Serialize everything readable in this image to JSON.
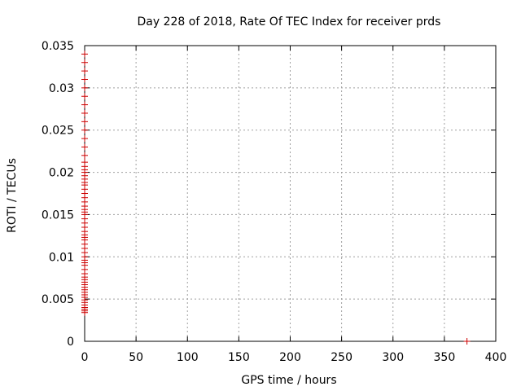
{
  "chart_data": {
    "type": "scatter",
    "title": "Day 228 of 2018, Rate Of TEC Index for receiver prds",
    "xlabel": "GPS time / hours",
    "ylabel": "ROTI / TECUs",
    "xlim": [
      0,
      400
    ],
    "ylim": [
      0,
      0.035
    ],
    "x_ticks": [
      0,
      50,
      100,
      150,
      200,
      250,
      300,
      350,
      400
    ],
    "x_tick_labels": [
      "0",
      "50",
      "100",
      "150",
      "200",
      "250",
      "300",
      "350",
      "400"
    ],
    "y_ticks": [
      0,
      0.005,
      0.01,
      0.015,
      0.02,
      0.025,
      0.03,
      0.035
    ],
    "y_tick_labels": [
      "0",
      "0.005",
      "0.01",
      "0.015",
      "0.02",
      "0.025",
      "0.03",
      "0.035"
    ],
    "grid": true,
    "marker": "plus",
    "series": [
      {
        "name": "ROTI",
        "color": "#cc0000",
        "points": [
          [
            0,
            0.0034
          ],
          [
            0,
            0.0036
          ],
          [
            0,
            0.0038
          ],
          [
            0,
            0.004
          ],
          [
            0,
            0.0043
          ],
          [
            0,
            0.0046
          ],
          [
            0,
            0.0049
          ],
          [
            0,
            0.0052
          ],
          [
            0,
            0.0055
          ],
          [
            0,
            0.0058
          ],
          [
            0,
            0.0061
          ],
          [
            0,
            0.0064
          ],
          [
            0,
            0.0067
          ],
          [
            0,
            0.007
          ],
          [
            0,
            0.0073
          ],
          [
            0,
            0.0076
          ],
          [
            0,
            0.008
          ],
          [
            0,
            0.0085
          ],
          [
            0,
            0.009
          ],
          [
            0,
            0.0093
          ],
          [
            0,
            0.0096
          ],
          [
            0,
            0.01
          ],
          [
            0,
            0.0105
          ],
          [
            0,
            0.011
          ],
          [
            0,
            0.0115
          ],
          [
            0,
            0.012
          ],
          [
            0,
            0.0123
          ],
          [
            0,
            0.0126
          ],
          [
            0,
            0.013
          ],
          [
            0,
            0.0135
          ],
          [
            0,
            0.014
          ],
          [
            0,
            0.0145
          ],
          [
            0,
            0.015
          ],
          [
            0,
            0.0153
          ],
          [
            0,
            0.0156
          ],
          [
            0,
            0.016
          ],
          [
            0,
            0.0165
          ],
          [
            0,
            0.017
          ],
          [
            0,
            0.0175
          ],
          [
            0,
            0.018
          ],
          [
            0,
            0.0185
          ],
          [
            0,
            0.0188
          ],
          [
            0,
            0.0192
          ],
          [
            0,
            0.0196
          ],
          [
            0,
            0.02
          ],
          [
            0,
            0.0203
          ],
          [
            0,
            0.0207
          ],
          [
            0,
            0.0212
          ],
          [
            0,
            0.022
          ],
          [
            0,
            0.023
          ],
          [
            0,
            0.024
          ],
          [
            0,
            0.025
          ],
          [
            0,
            0.026
          ],
          [
            0,
            0.027
          ],
          [
            0,
            0.028
          ],
          [
            0,
            0.029
          ],
          [
            0,
            0.03
          ],
          [
            0,
            0.031
          ],
          [
            0,
            0.032
          ],
          [
            0,
            0.033
          ],
          [
            0,
            0.034
          ],
          [
            372,
            0.0
          ]
        ]
      }
    ]
  }
}
